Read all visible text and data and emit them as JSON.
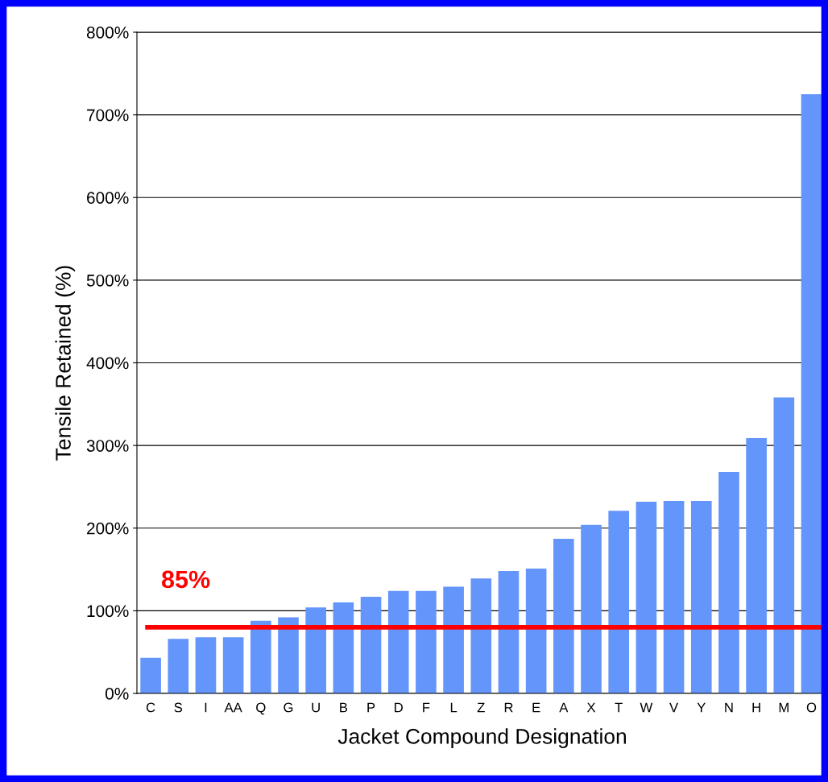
{
  "chart_data": {
    "type": "bar",
    "xlabel": "Jacket Compound Designation",
    "ylabel": "Tensile Retained (%)",
    "categories": [
      "C",
      "S",
      "I",
      "AA",
      "Q",
      "G",
      "U",
      "B",
      "P",
      "D",
      "F",
      "L",
      "Z",
      "R",
      "E",
      "A",
      "X",
      "T",
      "W",
      "V",
      "Y",
      "N",
      "H",
      "M",
      "O"
    ],
    "values": [
      43,
      66,
      68,
      68,
      88,
      92,
      104,
      110,
      117,
      124,
      124,
      129,
      139,
      148,
      151,
      187,
      204,
      221,
      232,
      233,
      233,
      268,
      309,
      358,
      725
    ],
    "color": "#6495fa",
    "ylim": [
      0,
      800
    ],
    "yticks": [
      {
        "value": 0,
        "label": "0%"
      },
      {
        "value": 100,
        "label": "100%"
      },
      {
        "value": 200,
        "label": "200%"
      },
      {
        "value": 300,
        "label": "300%"
      },
      {
        "value": 400,
        "label": "400%"
      },
      {
        "value": 500,
        "label": "500%"
      },
      {
        "value": 600,
        "label": "600%"
      },
      {
        "value": 700,
        "label": "700%"
      },
      {
        "value": 800,
        "label": "800%"
      }
    ],
    "grid": "y",
    "ref_lines": [
      {
        "axis": "y",
        "value": 80,
        "color": "#ff0000"
      }
    ],
    "annotations": [
      "85%"
    ]
  }
}
